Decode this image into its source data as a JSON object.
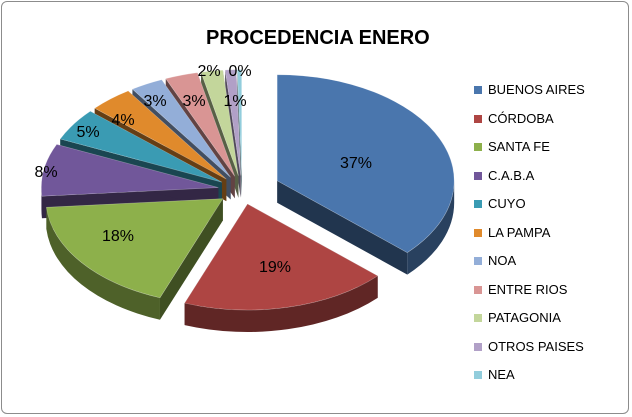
{
  "chart_data": {
    "type": "pie",
    "title": "PROCEDENCIA ENERO",
    "categories": [
      "BUENOS AIRES",
      "CÓRDOBA",
      "SANTA FE",
      "C.A.B.A",
      "CUYO",
      "LA PAMPA",
      "NOA",
      "ENTRE RIOS",
      "PATAGONIA",
      "OTROS PAISES",
      "NEA"
    ],
    "values": [
      37,
      19,
      18,
      8,
      5,
      4,
      3,
      3,
      2,
      1,
      0.4
    ],
    "data_labels": [
      "37%",
      "19%",
      "18%",
      "8%",
      "5%",
      "4%",
      "3%",
      "3%",
      "2%",
      "1%",
      "0%"
    ],
    "colors": [
      "#4a76ad",
      "#ae4543",
      "#8db04b",
      "#71579a",
      "#3a9bb3",
      "#e08a2c",
      "#93aed8",
      "#d99594",
      "#c3d69b",
      "#b1a0c7",
      "#92cddc"
    ],
    "legend_position": "right",
    "style": "3d-exploded"
  }
}
